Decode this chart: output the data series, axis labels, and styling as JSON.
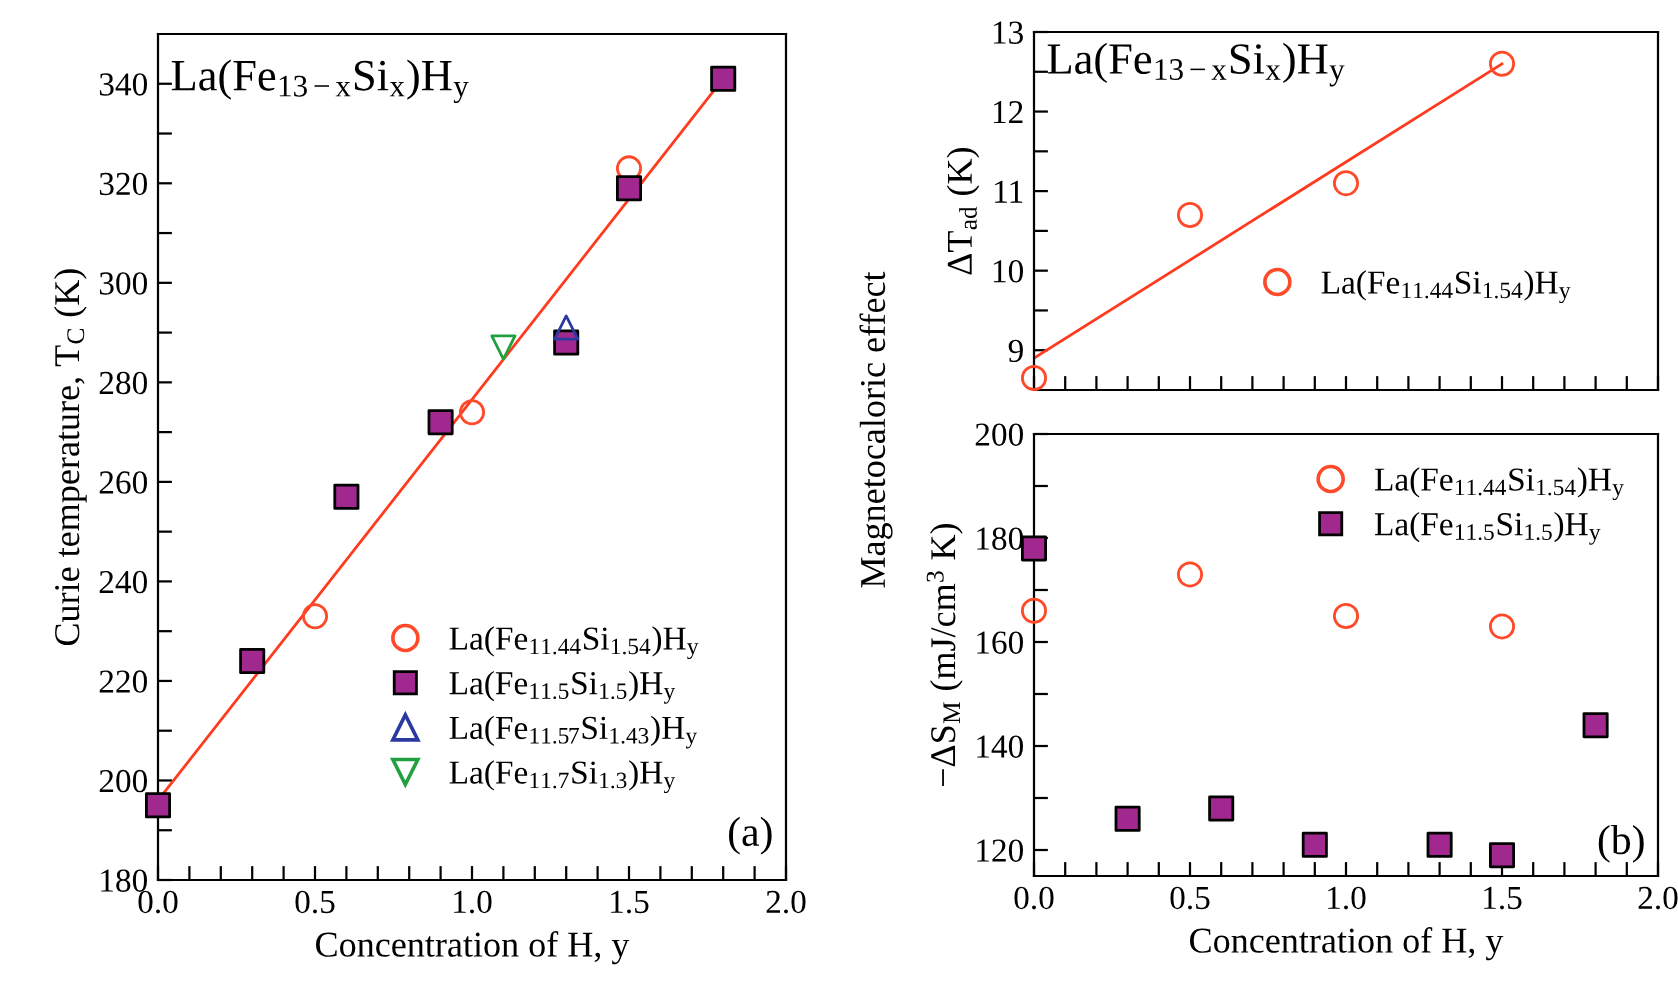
{
  "chart_data": [
    {
      "type": "scatter",
      "xlabel": "Concentration of H, y",
      "ylabel": "Curie temperature, T$_{C}$ (K)",
      "annotations": [
        "La(Fe$_{13−x}$Si$_{x}$)H$_{y}$",
        "(a)"
      ],
      "xlim": [
        0,
        2
      ],
      "ylim": [
        180,
        350
      ],
      "xticks": [
        {
          "value": 0,
          "label": "0.0"
        },
        {
          "value": 0.1,
          "label": null
        },
        {
          "value": 0.2,
          "label": null
        },
        {
          "value": 0.3,
          "label": null
        },
        {
          "value": 0.4,
          "label": null
        },
        {
          "value": 0.5,
          "label": "0.5"
        },
        {
          "value": 0.6,
          "label": null
        },
        {
          "value": 0.7,
          "label": null
        },
        {
          "value": 0.8,
          "label": null
        },
        {
          "value": 0.9,
          "label": null
        },
        {
          "value": 1.0,
          "label": "1.0"
        },
        {
          "value": 1.1,
          "label": null
        },
        {
          "value": 1.2,
          "label": null
        },
        {
          "value": 1.3,
          "label": null
        },
        {
          "value": 1.4,
          "label": null
        },
        {
          "value": 1.5,
          "label": "1.5"
        },
        {
          "value": 1.6,
          "label": null
        },
        {
          "value": 1.7,
          "label": null
        },
        {
          "value": 1.8,
          "label": null
        },
        {
          "value": 1.9,
          "label": null
        },
        {
          "value": 2.0,
          "label": "2.0"
        }
      ],
      "yticks": [
        180,
        {
          "value": 190,
          "label": null
        },
        200,
        {
          "value": 210,
          "label": null
        },
        220,
        {
          "value": 230,
          "label": null
        },
        240,
        {
          "value": 250,
          "label": null
        },
        260,
        {
          "value": 270,
          "label": null
        },
        280,
        {
          "value": 290,
          "label": null
        },
        300,
        {
          "value": 310,
          "label": null
        },
        320,
        {
          "value": 330,
          "label": null
        },
        340
      ],
      "legend": "bottom right",
      "grid": false,
      "series": [
        {
          "name": "La(Fe$_{11.44}$Si$_{1.54}$)H$_{y}$",
          "color": "#ff4a2a",
          "marker": "circle",
          "x": [
            0.5,
            1.0,
            1.5
          ],
          "values": [
            233,
            274,
            323
          ]
        },
        {
          "name": "La(Fe$_{11.5}$Si$_{1.5}$)H$_{y}$",
          "color": "#a0288e",
          "marker": "square",
          "x": [
            0,
            0.3,
            0.6,
            0.9,
            1.3,
            1.5,
            1.8
          ],
          "values": [
            195,
            224,
            257,
            272,
            288,
            319,
            341
          ]
        },
        {
          "name": "La(Fe$_{11.57}$Si$_{1.43}$)H$_{y}$",
          "color": "#2a3aa0",
          "marker": "triangle",
          "x": [
            1.3
          ],
          "values": [
            291
          ]
        },
        {
          "name": "La(Fe$_{11.7}$Si$_{1.3}$)H$_{y}$",
          "color": "#22a040",
          "marker": "triangle_down",
          "x": [
            1.1
          ],
          "values": [
            287
          ]
        },
        {
          "type": "line",
          "color": "#ff3b1f",
          "marker": "none",
          "x": [
            0,
            1.8
          ],
          "values": [
            196,
            341
          ]
        }
      ]
    },
    {
      "type": "scatter",
      "ylabel": "ΔT$_{ad}$ (K)",
      "annotations": [
        "La(Fe$_{13−x}$Si$_{x}$)H$_{y}$",
        "Magnetocaloric effect"
      ],
      "xlim": [
        0,
        2
      ],
      "ylim": [
        8.5,
        13
      ],
      "tick_labels": "y",
      "xticks": [
        {
          "value": 0,
          "label": null
        },
        {
          "value": 0.1,
          "label": null
        },
        {
          "value": 0.2,
          "label": null
        },
        {
          "value": 0.3,
          "label": null
        },
        {
          "value": 0.4,
          "label": null
        },
        {
          "value": 0.5,
          "label": null
        },
        {
          "value": 0.6,
          "label": null
        },
        {
          "value": 0.7,
          "label": null
        },
        {
          "value": 0.8,
          "label": null
        },
        {
          "value": 0.9,
          "label": null
        },
        {
          "value": 1.0,
          "label": null
        },
        {
          "value": 1.1,
          "label": null
        },
        {
          "value": 1.2,
          "label": null
        },
        {
          "value": 1.3,
          "label": null
        },
        {
          "value": 1.4,
          "label": null
        },
        {
          "value": 1.5,
          "label": null
        },
        {
          "value": 1.6,
          "label": null
        },
        {
          "value": 1.7,
          "label": null
        },
        {
          "value": 1.8,
          "label": null
        },
        {
          "value": 1.9,
          "label": null
        },
        {
          "value": 2.0,
          "label": null
        }
      ],
      "yticks": [
        9,
        {
          "value": 9.5,
          "label": null
        },
        10,
        {
          "value": 10.5,
          "label": null
        },
        11,
        {
          "value": 11.5,
          "label": null
        },
        12,
        {
          "value": 12.5,
          "label": null
        },
        13
      ],
      "legend": "bottom right",
      "grid": false,
      "series": [
        {
          "name": "La(Fe$_{11.44}$Si$_{1.54}$)H$_{y}$",
          "color": "#ff4a2a",
          "marker": "circle",
          "x": [
            0,
            0.5,
            1.0,
            1.5
          ],
          "values": [
            8.65,
            10.7,
            11.1,
            12.6
          ]
        },
        {
          "type": "line",
          "color": "#ff3b1f",
          "marker": "none",
          "x": [
            0,
            1.5
          ],
          "values": [
            8.9,
            12.6
          ]
        }
      ]
    },
    {
      "type": "scatter",
      "xlabel": "Concentration of H, y",
      "ylabel": "−ΔS$_{M}$ (mJ/cm$^{3}$ K)",
      "annotations": [
        "(b)"
      ],
      "xlim": [
        0,
        2
      ],
      "ylim": [
        115,
        200
      ],
      "xticks": [
        {
          "value": 0,
          "label": "0.0"
        },
        {
          "value": 0.1,
          "label": null
        },
        {
          "value": 0.2,
          "label": null
        },
        {
          "value": 0.3,
          "label": null
        },
        {
          "value": 0.4,
          "label": null
        },
        {
          "value": 0.5,
          "label": "0.5"
        },
        {
          "value": 0.6,
          "label": null
        },
        {
          "value": 0.7,
          "label": null
        },
        {
          "value": 0.8,
          "label": null
        },
        {
          "value": 0.9,
          "label": null
        },
        {
          "value": 1.0,
          "label": "1.0"
        },
        {
          "value": 1.1,
          "label": null
        },
        {
          "value": 1.2,
          "label": null
        },
        {
          "value": 1.3,
          "label": null
        },
        {
          "value": 1.4,
          "label": null
        },
        {
          "value": 1.5,
          "label": "1.5"
        },
        {
          "value": 1.6,
          "label": null
        },
        {
          "value": 1.7,
          "label": null
        },
        {
          "value": 1.8,
          "label": null
        },
        {
          "value": 1.9,
          "label": null
        },
        {
          "value": 2.0,
          "label": "2.0"
        }
      ],
      "yticks": [
        120,
        {
          "value": 130,
          "label": null
        },
        140,
        {
          "value": 150,
          "label": null
        },
        160,
        {
          "value": 170,
          "label": null
        },
        180,
        {
          "value": 190,
          "label": null
        },
        200
      ],
      "legend": "top right",
      "grid": false,
      "series": [
        {
          "name": "La(Fe$_{11.44}$Si$_{1.54}$)H$_{y}$",
          "color": "#ff4a2a",
          "marker": "circle",
          "x": [
            0,
            0.5,
            1.0,
            1.5
          ],
          "values": [
            166,
            173,
            165,
            163
          ]
        },
        {
          "name": "La(Fe$_{11.5}$Si$_{1.5}$)H$_{y}$",
          "color": "#a0288e",
          "marker": "square",
          "x": [
            0,
            0.3,
            0.6,
            0.9,
            1.3,
            1.5,
            1.8
          ],
          "values": [
            178,
            126,
            128,
            121,
            121,
            119,
            144
          ]
        }
      ]
    }
  ]
}
